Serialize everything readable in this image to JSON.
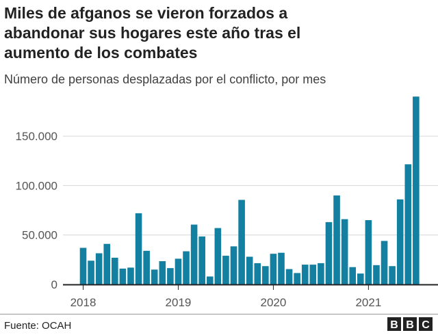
{
  "title_lines": [
    "Miles de afganos se vieron forzados a",
    "abandonar sus hogares este año tras el",
    "aumento de los combates"
  ],
  "subtitle": "Número de personas desplazadas por el conflicto, por mes",
  "source": "Fuente: OCAH",
  "logo": "BBC",
  "chart_data": {
    "type": "bar",
    "title": "Miles de afganos se vieron forzados a abandonar sus hogares este año tras el aumento de los combates",
    "subtitle": "Número de personas desplazadas por el conflicto, por mes",
    "xlabel": "",
    "ylabel": "",
    "ylim": [
      0,
      190000
    ],
    "grid": true,
    "bar_color": "#1380a1",
    "yticks": [
      {
        "value": 0,
        "label": "0"
      },
      {
        "value": 50000,
        "label": "50.000"
      },
      {
        "value": 100000,
        "label": "100.000"
      },
      {
        "value": 150000,
        "label": "150.000"
      }
    ],
    "xticks": [
      {
        "month": "2018-01",
        "label": "2018"
      },
      {
        "month": "2019-01",
        "label": "2019"
      },
      {
        "month": "2020-01",
        "label": "2020"
      },
      {
        "month": "2021-01",
        "label": "2021"
      }
    ],
    "categories": [
      "2018-01",
      "2018-02",
      "2018-03",
      "2018-04",
      "2018-05",
      "2018-06",
      "2018-07",
      "2018-08",
      "2018-09",
      "2018-10",
      "2018-11",
      "2018-12",
      "2019-01",
      "2019-02",
      "2019-03",
      "2019-04",
      "2019-05",
      "2019-06",
      "2019-07",
      "2019-08",
      "2019-09",
      "2019-10",
      "2019-11",
      "2019-12",
      "2020-01",
      "2020-02",
      "2020-03",
      "2020-04",
      "2020-05",
      "2020-06",
      "2020-07",
      "2020-08",
      "2020-09",
      "2020-10",
      "2020-11",
      "2020-12",
      "2021-01",
      "2021-02",
      "2021-03",
      "2021-04",
      "2021-05",
      "2021-06",
      "2021-07"
    ],
    "values": [
      37000,
      24000,
      31500,
      41000,
      27000,
      16000,
      17000,
      72000,
      34000,
      15000,
      23500,
      16500,
      26000,
      33500,
      60500,
      48500,
      8000,
      57000,
      29000,
      38500,
      85500,
      28000,
      21500,
      18500,
      31000,
      32000,
      15500,
      11500,
      20000,
      20000,
      21500,
      63000,
      90000,
      66000,
      17500,
      11000,
      65000,
      19500,
      44000,
      18500,
      86000,
      121500,
      190000
    ]
  }
}
